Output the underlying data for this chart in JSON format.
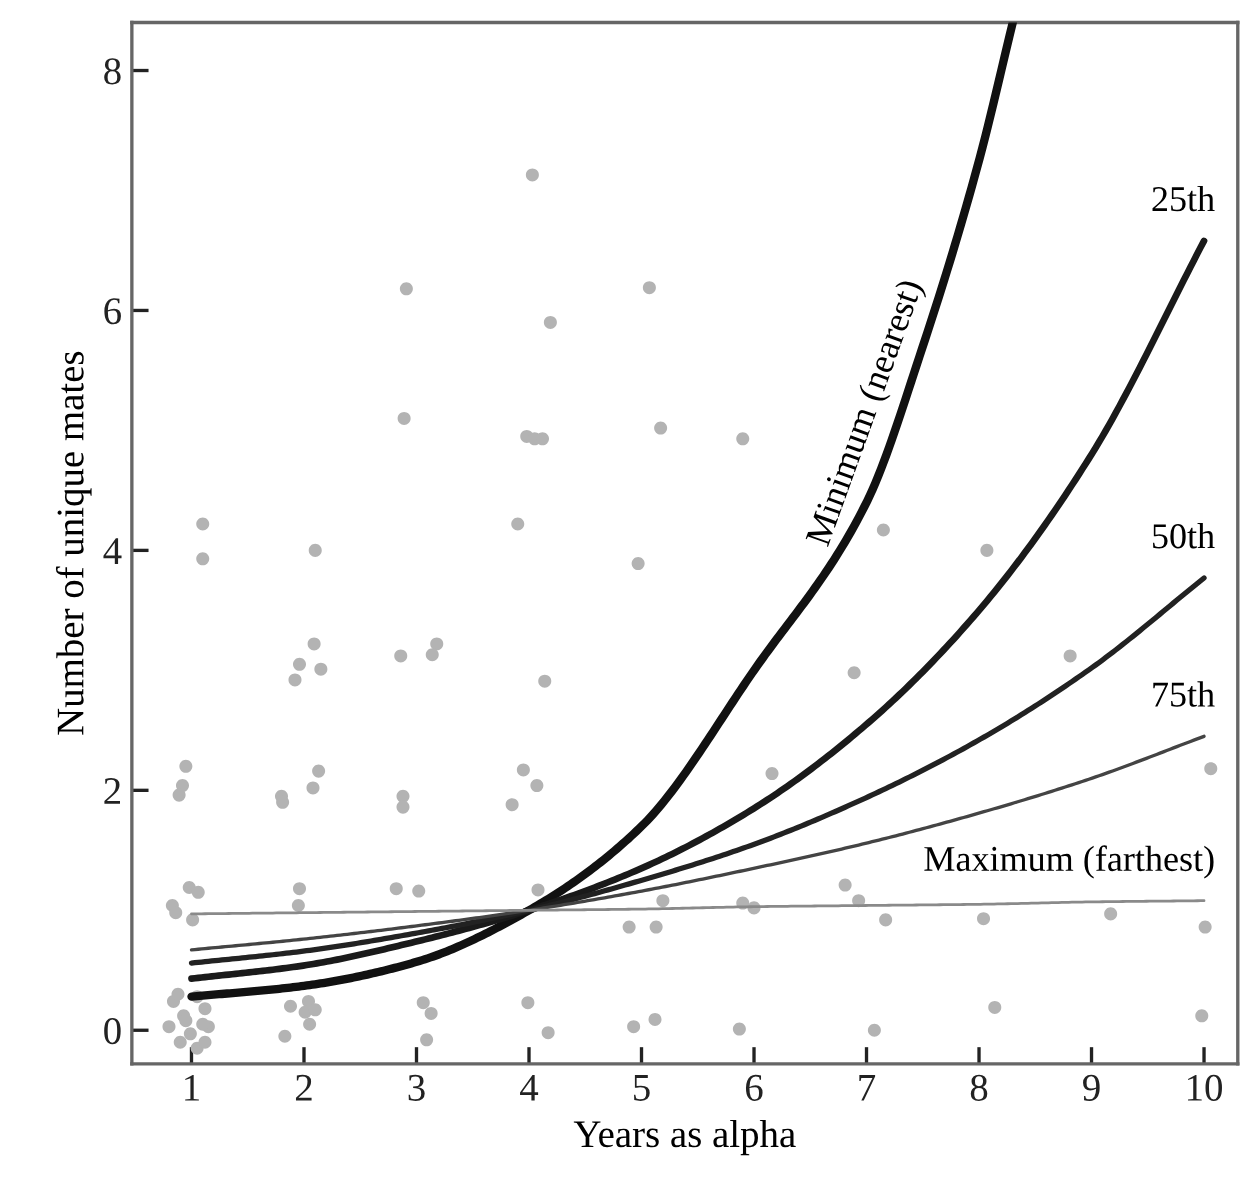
{
  "chart_data": {
    "type": "scatter",
    "xlabel": "Years as alpha",
    "ylabel": "Number of unique mates",
    "xlim": [
      0.47,
      10.3
    ],
    "ylim": [
      -0.28,
      8.4
    ],
    "xticks": [
      1,
      2,
      3,
      4,
      5,
      6,
      7,
      8,
      9,
      10
    ],
    "yticks": [
      0,
      2,
      4,
      6,
      8
    ],
    "grid": false,
    "legend": false,
    "marker": "circle",
    "series": [
      {
        "color": "#b3b3b3",
        "x": [
          4.03,
          2.91,
          5.07,
          4.19,
          2.89,
          3.98,
          4.05,
          4.12,
          5.17,
          5.9,
          1.1,
          1.1,
          2.1,
          3.9,
          4.97,
          2.09,
          1.96,
          1.92,
          2.15,
          2.86,
          3.18,
          3.14,
          4.14,
          0.95,
          0.92,
          0.89,
          2.13,
          2.08,
          1.8,
          1.81,
          2.88,
          2.88,
          3.95,
          4.07,
          3.85,
          7.15,
          8.07,
          6.89,
          8.81,
          6.16,
          10.06,
          0.83,
          0.86,
          1.01,
          0.98,
          1.06,
          1.96,
          1.95,
          2.82,
          3.02,
          4.08,
          4.89,
          5.13,
          5.19,
          5.9,
          6.0,
          6.81,
          6.93,
          7.17,
          8.04,
          9.17,
          10.01,
          8.14,
          9.98,
          0.84,
          0.93,
          0.99,
          1.12,
          1.15,
          0.8,
          0.88,
          1.05,
          0.9,
          1.05,
          1.12,
          0.95,
          1.1,
          1.88,
          2.04,
          2.01,
          2.1,
          1.83,
          2.05,
          3.06,
          3.13,
          3.09,
          3.99,
          4.17,
          4.93,
          5.12,
          5.87,
          7.07
        ],
        "values": [
          7.13,
          6.18,
          6.19,
          5.9,
          5.1,
          4.95,
          4.93,
          4.93,
          5.02,
          4.93,
          4.22,
          3.93,
          4.0,
          4.22,
          3.89,
          3.22,
          3.05,
          2.92,
          3.01,
          3.12,
          3.22,
          3.13,
          2.91,
          2.2,
          2.04,
          1.96,
          2.16,
          2.02,
          1.95,
          1.9,
          1.95,
          1.86,
          2.17,
          2.04,
          1.88,
          4.17,
          4.0,
          2.98,
          3.12,
          2.14,
          2.18,
          1.04,
          0.98,
          0.92,
          1.19,
          1.15,
          1.18,
          1.04,
          1.18,
          1.16,
          1.17,
          0.86,
          0.86,
          1.08,
          1.06,
          1.02,
          1.21,
          1.08,
          0.92,
          0.93,
          0.97,
          0.86,
          0.19,
          0.12,
          0.24,
          0.12,
          -0.03,
          0.18,
          0.03,
          0.03,
          0.3,
          0.28,
          -0.1,
          -0.15,
          -0.1,
          0.08,
          0.05,
          0.2,
          0.24,
          0.15,
          0.17,
          -0.05,
          0.05,
          0.23,
          0.14,
          -0.08,
          0.23,
          -0.02,
          0.03,
          0.09,
          0.01,
          0.0
        ]
      },
      {
        "type": "line",
        "name": "Minimum (nearest)",
        "color": "#111111",
        "marker": "none",
        "x": [
          1,
          2,
          3,
          4,
          5,
          6,
          7,
          7.5,
          8,
          8.3
        ],
        "values": [
          0.28,
          0.37,
          0.57,
          1.0,
          1.7,
          3.0,
          4.4,
          5.7,
          7.25,
          8.4
        ]
      },
      {
        "type": "line",
        "name": "25th",
        "color": "#1a1a1a",
        "marker": "none",
        "x": [
          1,
          2,
          3,
          4,
          5,
          6,
          7,
          8,
          9,
          10
        ],
        "values": [
          0.43,
          0.54,
          0.74,
          1.0,
          1.35,
          1.85,
          2.55,
          3.5,
          4.8,
          6.58
        ]
      },
      {
        "type": "line",
        "name": "50th",
        "color": "#222222",
        "marker": "none",
        "x": [
          1,
          2,
          3,
          4,
          5,
          6,
          7,
          8,
          9,
          10
        ],
        "values": [
          0.56,
          0.66,
          0.81,
          1.0,
          1.25,
          1.55,
          1.94,
          2.42,
          3.02,
          3.77
        ]
      },
      {
        "type": "line",
        "name": "75th",
        "color": "#444444",
        "marker": "none",
        "x": [
          1,
          2,
          3,
          4,
          5,
          6,
          7,
          8,
          9,
          10
        ],
        "values": [
          0.67,
          0.76,
          0.87,
          1.0,
          1.16,
          1.35,
          1.56,
          1.81,
          2.1,
          2.45
        ]
      },
      {
        "type": "line",
        "name": "Maximum (farthest)",
        "color": "#8a8a8a",
        "marker": "none",
        "x": [
          1,
          2,
          3,
          4,
          5,
          6,
          7,
          8,
          9,
          10
        ],
        "values": [
          0.97,
          0.98,
          0.99,
          1.0,
          1.01,
          1.03,
          1.04,
          1.05,
          1.07,
          1.08
        ]
      }
    ]
  }
}
